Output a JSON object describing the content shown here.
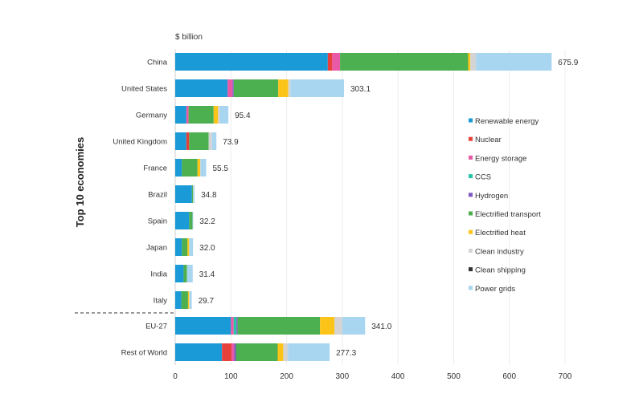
{
  "chart_data": {
    "type": "bar",
    "orientation": "horizontal",
    "stacked": true,
    "unit_label": "$ billion",
    "ylabel": "Top 10 economies",
    "xlabel": "",
    "xlim": [
      0,
      700
    ],
    "xticks": [
      0,
      100,
      200,
      300,
      400,
      500,
      600,
      700
    ],
    "grid": true,
    "legend_position": "right",
    "separator_after": "Italy",
    "categories": [
      "China",
      "United States",
      "Germany",
      "United Kingdom",
      "France",
      "Brazil",
      "Spain",
      "Japan",
      "India",
      "Italy",
      "EU-27",
      "Rest of World"
    ],
    "totals": [
      "675.9",
      "303.1",
      "95.4",
      "73.9",
      "55.5",
      "34.8",
      "32.2",
      "32.0",
      "31.4",
      "29.7",
      "341.0",
      "277.3"
    ],
    "series": [
      {
        "name": "Renewable energy",
        "color": "#1a9ad6",
        "values": [
          274,
          94,
          20,
          20,
          12,
          30,
          25,
          12,
          15,
          11,
          100,
          84
        ]
      },
      {
        "name": "Nuclear",
        "color": "#e8413c",
        "values": [
          8,
          0,
          0,
          5,
          0,
          0,
          0,
          0,
          0,
          0,
          0,
          17
        ]
      },
      {
        "name": "Energy storage",
        "color": "#e85aa6",
        "values": [
          14,
          9,
          4,
          0,
          0,
          0,
          0,
          0,
          0,
          0,
          5,
          5
        ]
      },
      {
        "name": "CCS",
        "color": "#27c4a8",
        "values": [
          0,
          0,
          0,
          0,
          0,
          0,
          0,
          0,
          0,
          0,
          5,
          0
        ]
      },
      {
        "name": "Hydrogen",
        "color": "#7e57c2",
        "values": [
          0,
          2,
          0,
          0,
          0,
          0,
          0,
          0,
          0,
          0,
          2,
          3
        ]
      },
      {
        "name": "Electrified transport",
        "color": "#4caf50",
        "values": [
          230,
          80,
          45,
          35,
          28,
          2,
          6,
          10,
          6,
          12,
          148,
          75
        ]
      },
      {
        "name": "Electrified heat",
        "color": "#fcc419",
        "values": [
          4,
          18,
          8,
          0,
          5,
          0,
          0,
          3,
          0,
          2,
          26,
          10
        ]
      },
      {
        "name": "Clean industry",
        "color": "#d4d4d4",
        "values": [
          10,
          4,
          3,
          6,
          0.5,
          0.8,
          0,
          0,
          0.4,
          1,
          14,
          8.3
        ]
      },
      {
        "name": "Clean shipping",
        "color": "#333333",
        "values": [
          0,
          0,
          0,
          0,
          0,
          0,
          0,
          0,
          0,
          0,
          0,
          0
        ]
      },
      {
        "name": "Power grids",
        "color": "#a8d5ef",
        "values": [
          135.9,
          96.1,
          15.4,
          7.9,
          10,
          2,
          1.2,
          7,
          10,
          3.7,
          41,
          75
        ]
      }
    ]
  }
}
